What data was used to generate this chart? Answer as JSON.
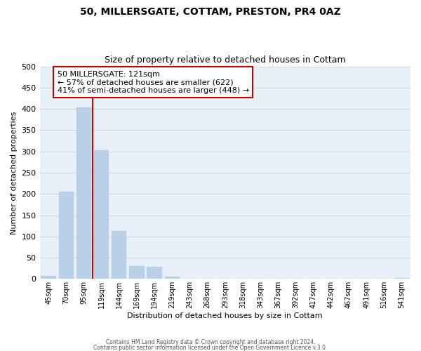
{
  "title": "50, MILLERSGATE, COTTAM, PRESTON, PR4 0AZ",
  "subtitle": "Size of property relative to detached houses in Cottam",
  "xlabel": "Distribution of detached houses by size in Cottam",
  "ylabel": "Number of detached properties",
  "bar_labels": [
    "45sqm",
    "70sqm",
    "95sqm",
    "119sqm",
    "144sqm",
    "169sqm",
    "194sqm",
    "219sqm",
    "243sqm",
    "268sqm",
    "293sqm",
    "318sqm",
    "343sqm",
    "367sqm",
    "392sqm",
    "417sqm",
    "442sqm",
    "467sqm",
    "491sqm",
    "516sqm",
    "541sqm"
  ],
  "bar_values": [
    8,
    205,
    403,
    303,
    113,
    30,
    28,
    5,
    1,
    0,
    0,
    0,
    0,
    0,
    0,
    0,
    0,
    0,
    0,
    0,
    3
  ],
  "bar_color": "#b8d0e8",
  "bar_edge_color": "#b8d0e8",
  "grid_color": "#c8d8ec",
  "background_color": "#ffffff",
  "plot_bg_color": "#eaf0f8",
  "red_line_index": 3,
  "annotation_title": "50 MILLERSGATE: 121sqm",
  "annotation_line1": "← 57% of detached houses are smaller (622)",
  "annotation_line2": "41% of semi-detached houses are larger (448) →",
  "annotation_box_color": "#ffffff",
  "annotation_box_edge": "#cc0000",
  "red_line_color": "#cc0000",
  "ylim": [
    0,
    500
  ],
  "yticks": [
    0,
    50,
    100,
    150,
    200,
    250,
    300,
    350,
    400,
    450,
    500
  ],
  "footer1": "Contains HM Land Registry data © Crown copyright and database right 2024.",
  "footer2": "Contains public sector information licensed under the Open Government Licence v.3.0."
}
